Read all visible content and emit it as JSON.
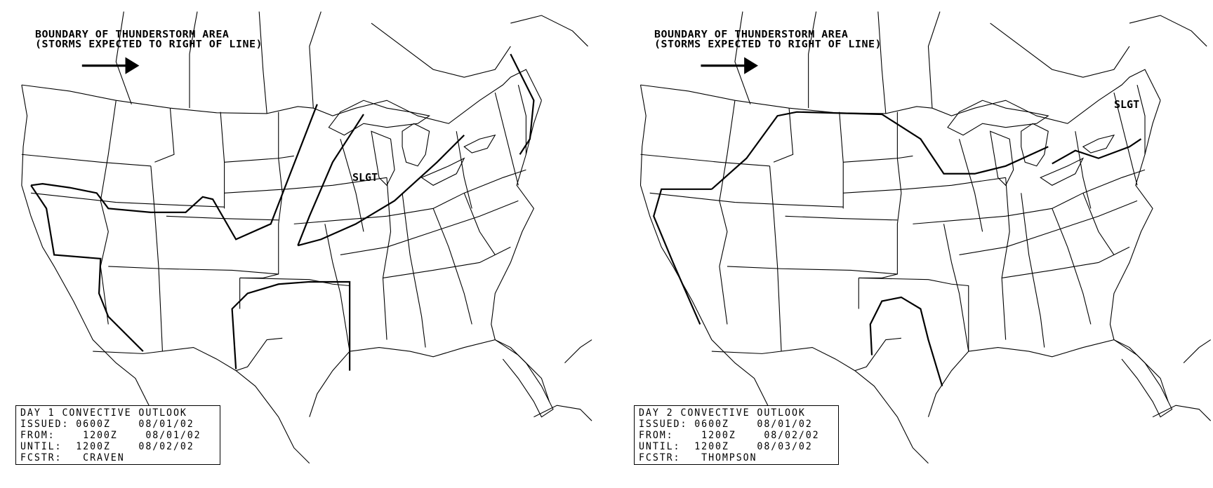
{
  "panels": [
    {
      "legend": {
        "line1": "BOUNDARY OF THUNDERSTORM AREA",
        "line2": "(STORMS EXPECTED TO RIGHT OF LINE)",
        "arrow_icon": "right-arrow"
      },
      "risk_labels": [
        "SLGT"
      ],
      "info": {
        "title": "DAY 1 CONVECTIVE OUTLOOK",
        "issued": "ISSUED: 0600Z    08/01/02",
        "from": "FROM:    1200Z    08/01/02",
        "until": "UNTIL:  1200Z    08/02/02",
        "fcstr": "FCSTR:   CRAVEN"
      }
    },
    {
      "legend": {
        "line1": "BOUNDARY OF THUNDERSTORM AREA",
        "line2": "(STORMS EXPECTED TO RIGHT OF LINE)",
        "arrow_icon": "right-arrow"
      },
      "risk_labels": [
        "SLGT"
      ],
      "info": {
        "title": "DAY 2 CONVECTIVE OUTLOOK",
        "issued": "ISSUED: 0600Z    08/01/02",
        "from": "FROM:    1200Z    08/02/02",
        "until": "UNTIL:  1200Z    08/03/02",
        "fcstr": "FCSTR:   THOMPSON"
      }
    }
  ],
  "colors": {
    "line": "#000000",
    "background": "#ffffff"
  }
}
